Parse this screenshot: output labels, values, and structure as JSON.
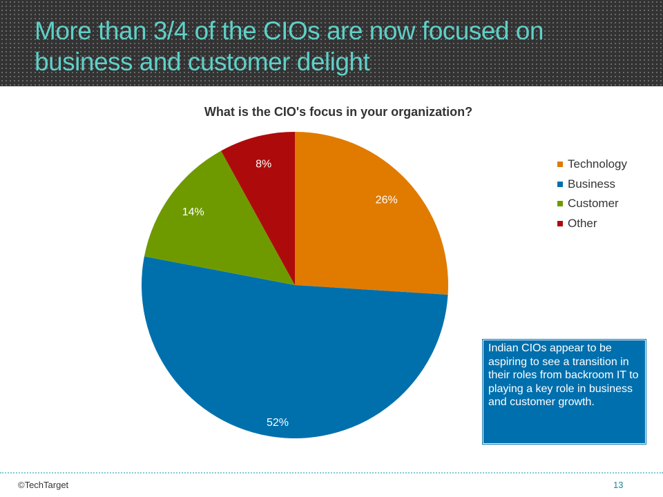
{
  "slide": {
    "title_line1": "More than 3/4 of the CIOs are now focused on",
    "title_line2": "business and customer delight",
    "footer": "©TechTarget",
    "page_number": "13"
  },
  "callout": "Indian CIOs appear to be aspiring to see a transition in their roles from backroom IT to playing a key role in business and customer growth.",
  "chart_data": {
    "type": "pie",
    "title": "What is the CIO's focus in your organization?",
    "categories": [
      "Technology",
      "Business",
      "Customer",
      "Other"
    ],
    "values": [
      26,
      52,
      14,
      8
    ],
    "labels": [
      "26%",
      "52%",
      "14%",
      "8%"
    ],
    "colors": [
      "#e07b00",
      "#0070ad",
      "#6e9a00",
      "#ad0b0b"
    ],
    "legend": "right"
  }
}
